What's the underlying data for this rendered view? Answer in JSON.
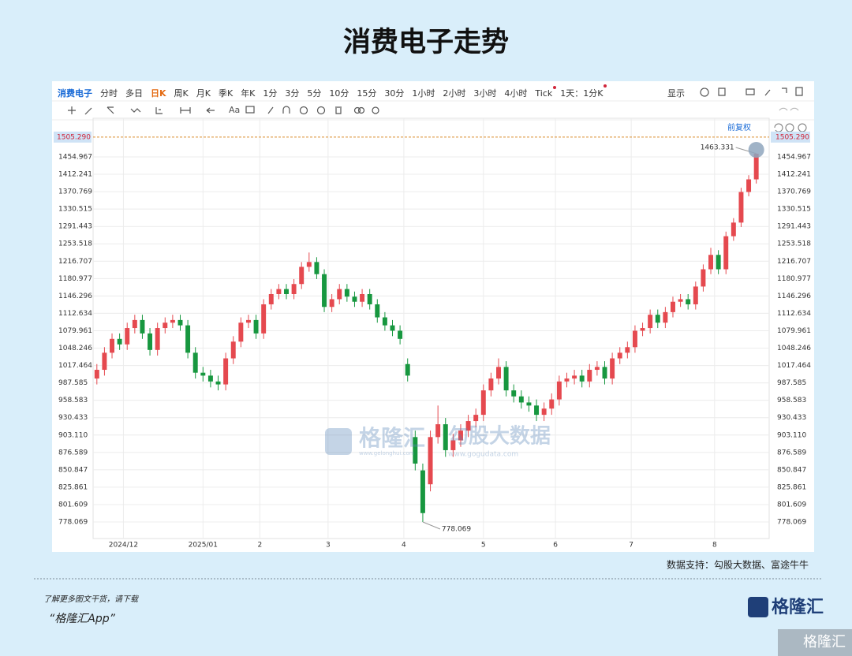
{
  "ui": {
    "title": "消费电子走势",
    "toolbar": {
      "tabs": [
        "消费电子",
        "分时",
        "多日",
        "日K",
        "周K",
        "月K",
        "季K",
        "年K",
        "1分",
        "3分",
        "5分",
        "10分",
        "15分",
        "30分",
        "1小时",
        "2小时",
        "3小时",
        "4小时",
        "Tick",
        "1天：1分K"
      ],
      "display": "显示",
      "font_tool": "Aa"
    },
    "adjust": "前复权",
    "watermark": {
      "brand": "格隆汇",
      "brand_url": "www.gelonghui.com",
      "data": "勾股大数据",
      "data_url": "www.gogudata.com"
    },
    "source": "数据支持：勾股大数据、富途牛牛",
    "footer": {
      "line1": "了解更多图文干货，请下载",
      "line2": "“格隆汇App”",
      "logo": "格隆汇",
      "corner": "格隆汇"
    }
  },
  "chart_data": {
    "type": "candlestick",
    "log_scale": true,
    "grid": true,
    "up_color": "#e5494f",
    "down_color": "#17973f",
    "price_line": {
      "value": 1505.29,
      "label": "1505.290",
      "color": "#d98b2b"
    },
    "xlim": [
      -0.5,
      88.7
    ],
    "xticks": [
      {
        "value": 3.5,
        "label": "2024/12"
      },
      {
        "value": 14,
        "label": "2025/01"
      },
      {
        "value": 21.5,
        "label": "2"
      },
      {
        "value": 30.5,
        "label": "3"
      },
      {
        "value": 40.5,
        "label": "4"
      },
      {
        "value": 51,
        "label": "5"
      },
      {
        "value": 60.5,
        "label": "6"
      },
      {
        "value": 70.5,
        "label": "7"
      },
      {
        "value": 81.5,
        "label": "8"
      }
    ],
    "ylim": [
      756.3,
      1537.9
    ],
    "yticks": [
      1454.967,
      1412.241,
      1370.769,
      1330.515,
      1291.443,
      1253.518,
      1216.707,
      1180.977,
      1146.296,
      1112.634,
      1079.961,
      1048.246,
      1017.464,
      987.585,
      958.583,
      {
        "value": 930.433,
        "label": "930.433"
      },
      {
        "value": 903.11,
        "label": "903.110"
      },
      876.589,
      850.847,
      825.861,
      801.609,
      778.069
    ],
    "candles": {
      "open": [
        995,
        1010,
        1040,
        1065,
        1055,
        1085,
        1100,
        1075,
        1045,
        1085,
        1095,
        1100,
        1090,
        1040,
        1005,
        1000,
        990,
        985,
        1030,
        1060,
        1095,
        1100,
        1075,
        1130,
        1150,
        1160,
        1150,
        1170,
        1205,
        1215,
        1190,
        1125,
        1140,
        1160,
        1145,
        1135,
        1150,
        1130,
        1105,
        1090,
        1080,
        1020,
        900,
        850,
        830,
        900,
        920,
        880,
        895,
        910,
        925,
        935,
        975,
        995,
        1015,
        975,
        965,
        955,
        950,
        935,
        945,
        960,
        990,
        995,
        1000,
        990,
        1010,
        1015,
        995,
        1030,
        1040,
        1050,
        1080,
        1085,
        1110,
        1095,
        1115,
        1135,
        1140,
        1130,
        1165,
        1200,
        1230,
        1200,
        1270,
        1300,
        1370,
        1400
      ],
      "high": [
        1020,
        1050,
        1075,
        1075,
        1095,
        1110,
        1110,
        1085,
        1095,
        1105,
        1110,
        1110,
        1100,
        1050,
        1015,
        1010,
        1000,
        1040,
        1070,
        1105,
        1110,
        1110,
        1140,
        1160,
        1170,
        1170,
        1180,
        1215,
        1235,
        1225,
        1200,
        1150,
        1170,
        1170,
        1155,
        1160,
        1160,
        1140,
        1115,
        1100,
        1090,
        1030,
        910,
        860,
        910,
        950,
        930,
        905,
        920,
        935,
        945,
        985,
        1005,
        1030,
        1025,
        985,
        975,
        965,
        960,
        955,
        970,
        1000,
        1005,
        1010,
        1010,
        1020,
        1025,
        1025,
        1040,
        1050,
        1060,
        1090,
        1095,
        1120,
        1120,
        1125,
        1145,
        1150,
        1150,
        1175,
        1210,
        1245,
        1240,
        1280,
        1310,
        1380,
        1410,
        1463.331
      ],
      "low": [
        985,
        1000,
        1030,
        1045,
        1045,
        1075,
        1065,
        1035,
        1035,
        1075,
        1085,
        1080,
        1030,
        995,
        990,
        980,
        975,
        975,
        1020,
        1050,
        1085,
        1065,
        1065,
        1120,
        1140,
        1140,
        1140,
        1160,
        1195,
        1180,
        1115,
        1115,
        1130,
        1135,
        1125,
        1125,
        1120,
        1095,
        1080,
        1070,
        1055,
        990,
        850,
        778.069,
        820,
        890,
        870,
        870,
        885,
        900,
        915,
        925,
        965,
        985,
        965,
        955,
        945,
        940,
        925,
        925,
        935,
        950,
        980,
        985,
        980,
        980,
        1000,
        985,
        985,
        1020,
        1030,
        1040,
        1070,
        1075,
        1085,
        1085,
        1105,
        1125,
        1120,
        1120,
        1155,
        1190,
        1190,
        1190,
        1260,
        1290,
        1360,
        1390
      ],
      "close": [
        1010,
        1040,
        1065,
        1055,
        1085,
        1100,
        1075,
        1045,
        1085,
        1095,
        1100,
        1090,
        1040,
        1005,
        1000,
        990,
        985,
        1030,
        1060,
        1095,
        1100,
        1075,
        1130,
        1150,
        1160,
        1150,
        1170,
        1205,
        1215,
        1190,
        1125,
        1140,
        1160,
        1145,
        1135,
        1150,
        1130,
        1105,
        1090,
        1080,
        1065,
        1000,
        860,
        790,
        900,
        920,
        880,
        895,
        910,
        925,
        935,
        975,
        995,
        1015,
        975,
        965,
        955,
        950,
        935,
        945,
        960,
        990,
        995,
        1000,
        990,
        1010,
        1015,
        995,
        1030,
        1040,
        1050,
        1080,
        1085,
        1110,
        1095,
        1115,
        1135,
        1140,
        1130,
        1165,
        1200,
        1230,
        1200,
        1270,
        1300,
        1370,
        1400,
        1463
      ]
    }
  }
}
